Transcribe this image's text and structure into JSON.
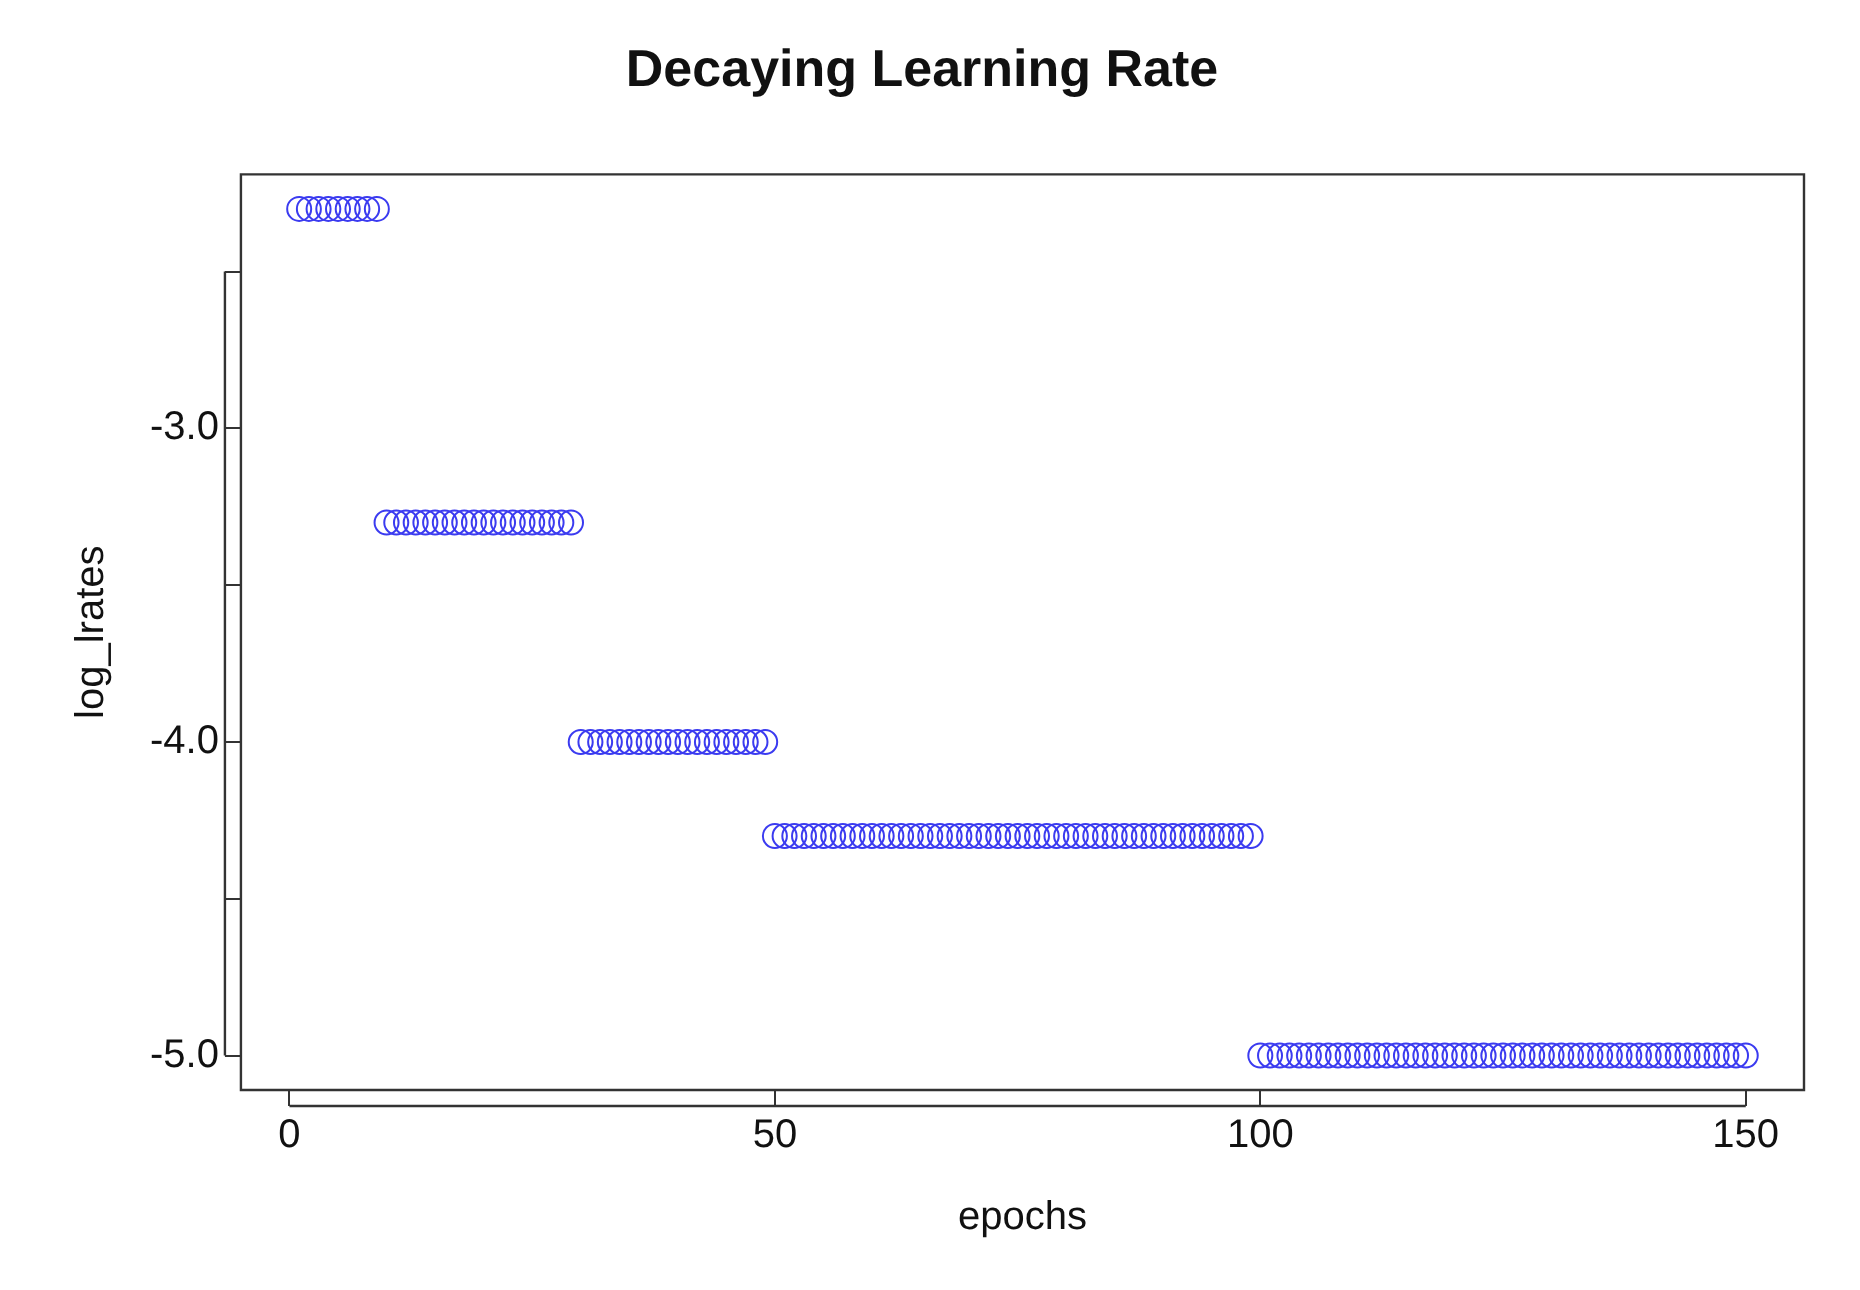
{
  "chart_data": {
    "type": "scatter",
    "title": "Decaying Learning Rate",
    "xlabel": "epochs",
    "ylabel": "log_lrates",
    "x": [
      1,
      2,
      3,
      4,
      5,
      6,
      7,
      8,
      9,
      10,
      11,
      12,
      13,
      14,
      15,
      16,
      17,
      18,
      19,
      20,
      21,
      22,
      23,
      24,
      25,
      26,
      27,
      28,
      29,
      30,
      31,
      32,
      33,
      34,
      35,
      36,
      37,
      38,
      39,
      40,
      41,
      42,
      43,
      44,
      45,
      46,
      47,
      48,
      49,
      50,
      51,
      52,
      53,
      54,
      55,
      56,
      57,
      58,
      59,
      60,
      61,
      62,
      63,
      64,
      65,
      66,
      67,
      68,
      69,
      70,
      71,
      72,
      73,
      74,
      75,
      76,
      77,
      78,
      79,
      80,
      81,
      82,
      83,
      84,
      85,
      86,
      87,
      88,
      89,
      90,
      91,
      92,
      93,
      94,
      95,
      96,
      97,
      98,
      99,
      100,
      101,
      102,
      103,
      104,
      105,
      106,
      107,
      108,
      109,
      110,
      111,
      112,
      113,
      114,
      115,
      116,
      117,
      118,
      119,
      120,
      121,
      122,
      123,
      124,
      125,
      126,
      127,
      128,
      129,
      130,
      131,
      132,
      133,
      134,
      135,
      136,
      137,
      138,
      139,
      140,
      141,
      142,
      143,
      144,
      145,
      146,
      147,
      148,
      149,
      150
    ],
    "series": [
      {
        "color": "#3b3bf0",
        "values": [
          -2.3,
          -2.3,
          -2.3,
          -2.3,
          -2.3,
          -2.3,
          -2.3,
          -2.3,
          -2.3,
          -3.3,
          -3.3,
          -3.3,
          -3.3,
          -3.3,
          -3.3,
          -3.3,
          -3.3,
          -3.3,
          -3.3,
          -3.3,
          -3.3,
          -3.3,
          -3.3,
          -3.3,
          -3.3,
          -3.3,
          -3.3,
          -3.3,
          -3.3,
          -4.0,
          -4.0,
          -4.0,
          -4.0,
          -4.0,
          -4.0,
          -4.0,
          -4.0,
          -4.0,
          -4.0,
          -4.0,
          -4.0,
          -4.0,
          -4.0,
          -4.0,
          -4.0,
          -4.0,
          -4.0,
          -4.0,
          -4.0,
          -4.3,
          -4.3,
          -4.3,
          -4.3,
          -4.3,
          -4.3,
          -4.3,
          -4.3,
          -4.3,
          -4.3,
          -4.3,
          -4.3,
          -4.3,
          -4.3,
          -4.3,
          -4.3,
          -4.3,
          -4.3,
          -4.3,
          -4.3,
          -4.3,
          -4.3,
          -4.3,
          -4.3,
          -4.3,
          -4.3,
          -4.3,
          -4.3,
          -4.3,
          -4.3,
          -4.3,
          -4.3,
          -4.3,
          -4.3,
          -4.3,
          -4.3,
          -4.3,
          -4.3,
          -4.3,
          -4.3,
          -4.3,
          -4.3,
          -4.3,
          -4.3,
          -4.3,
          -4.3,
          -4.3,
          -4.3,
          -4.3,
          -4.3,
          -5.0,
          -5.0,
          -5.0,
          -5.0,
          -5.0,
          -5.0,
          -5.0,
          -5.0,
          -5.0,
          -5.0,
          -5.0,
          -5.0,
          -5.0,
          -5.0,
          -5.0,
          -5.0,
          -5.0,
          -5.0,
          -5.0,
          -5.0,
          -5.0,
          -5.0,
          -5.0,
          -5.0,
          -5.0,
          -5.0,
          -5.0,
          -5.0,
          -5.0,
          -5.0,
          -5.0,
          -5.0,
          -5.0,
          -5.0,
          -5.0,
          -5.0,
          -5.0,
          -5.0,
          -5.0,
          -5.0,
          -5.0,
          -5.0,
          -5.0,
          -5.0,
          -5.0,
          -5.0,
          -5.0,
          -5.0,
          -5.0,
          -5.0,
          -5.0
        ]
      }
    ],
    "xlim": [
      -5,
      156
    ],
    "xticks": [
      0,
      50,
      100,
      150
    ],
    "ylim": [
      -5.11,
      -2.19
    ],
    "yticks": [
      {
        "value": -5,
        "label": "-5.0"
      },
      {
        "value": -4.5,
        "label": null
      },
      {
        "value": -4,
        "label": "-4.0"
      },
      {
        "value": -3.5,
        "label": null
      },
      {
        "value": -3,
        "label": "-3.0"
      },
      {
        "value": -2.5,
        "label": null
      }
    ],
    "marker": "circle",
    "grid": false,
    "legend": false
  }
}
